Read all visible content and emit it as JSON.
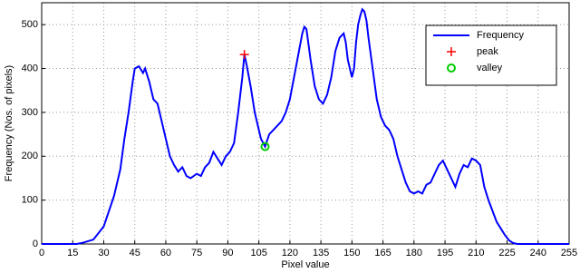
{
  "chart_data": {
    "type": "line",
    "xlabel": "Pixel value",
    "ylabel": "Frequency (Nos. of pixels)",
    "label_color": "#ff0000",
    "xlim": [
      0,
      255
    ],
    "ylim": [
      0,
      550
    ],
    "xticks": [
      0,
      15,
      30,
      45,
      60,
      75,
      90,
      105,
      120,
      135,
      150,
      165,
      180,
      195,
      210,
      225,
      240,
      255
    ],
    "yticks": [
      0,
      100,
      200,
      300,
      400,
      500
    ],
    "grid": true,
    "legend": "upper right",
    "series": [
      {
        "name": "Frequency",
        "color": "#0000ff",
        "marker": "line",
        "x": [
          0,
          17,
          20,
          25,
          30,
          35,
          38,
          40,
          42,
          44,
          45,
          47,
          49,
          50,
          52,
          54,
          56,
          58,
          60,
          62,
          64,
          66,
          68,
          70,
          72,
          75,
          77,
          79,
          81,
          83,
          85,
          87,
          89,
          91,
          93,
          95,
          97,
          98,
          99,
          101,
          103,
          105,
          106,
          108,
          110,
          112,
          114,
          116,
          118,
          120,
          122,
          124,
          126,
          127,
          128,
          130,
          132,
          134,
          136,
          138,
          140,
          142,
          144,
          146,
          147,
          148,
          150,
          151,
          152,
          153,
          154,
          155,
          156,
          157,
          158,
          160,
          162,
          164,
          166,
          168,
          170,
          172,
          174,
          176,
          178,
          180,
          182,
          184,
          186,
          188,
          190,
          192,
          194,
          196,
          198,
          200,
          202,
          204,
          206,
          208,
          210,
          212,
          214,
          216,
          218,
          220,
          222,
          224,
          226,
          228,
          230,
          255
        ],
        "values": [
          0,
          0,
          3,
          10,
          40,
          110,
          170,
          240,
          300,
          370,
          400,
          405,
          390,
          400,
          370,
          330,
          320,
          280,
          240,
          200,
          180,
          165,
          175,
          155,
          150,
          160,
          155,
          175,
          185,
          210,
          195,
          180,
          200,
          210,
          230,
          300,
          380,
          432,
          410,
          360,
          300,
          260,
          240,
          222,
          250,
          260,
          270,
          280,
          300,
          330,
          380,
          430,
          480,
          495,
          490,
          420,
          360,
          330,
          320,
          340,
          380,
          440,
          470,
          480,
          460,
          420,
          380,
          400,
          460,
          500,
          520,
          535,
          530,
          510,
          470,
          400,
          330,
          290,
          270,
          260,
          240,
          200,
          170,
          140,
          120,
          115,
          120,
          115,
          135,
          140,
          160,
          180,
          190,
          170,
          150,
          130,
          160,
          180,
          175,
          195,
          190,
          180,
          130,
          100,
          75,
          50,
          35,
          20,
          8,
          2,
          0,
          0
        ]
      },
      {
        "name": "peak",
        "color": "#ff0000",
        "marker": "+",
        "x": [
          98
        ],
        "values": [
          432
        ]
      },
      {
        "name": "valley",
        "color": "#00cc00",
        "marker": "o",
        "x": [
          108
        ],
        "values": [
          222
        ]
      }
    ]
  }
}
